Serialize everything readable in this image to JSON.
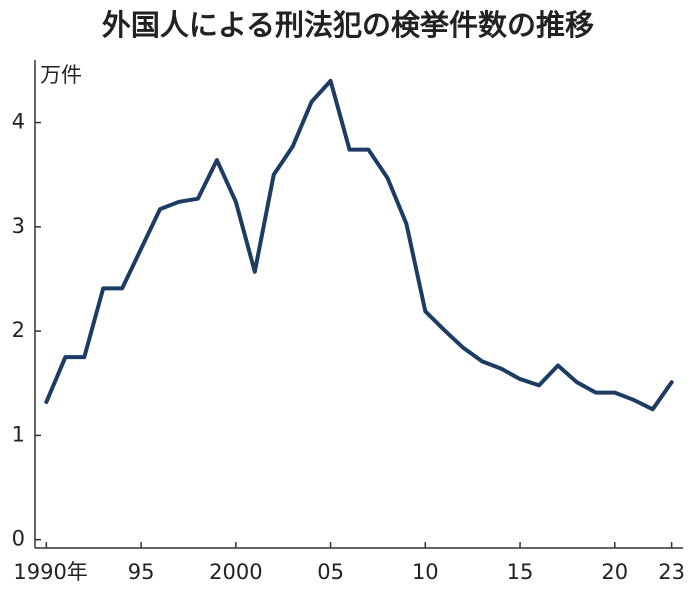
{
  "chart_data": {
    "type": "line",
    "title": "外国人による刑法犯の検挙件数の推移",
    "y_label": "万件",
    "x": [
      1990,
      1991,
      1992,
      1993,
      1994,
      1995,
      1996,
      1997,
      1998,
      1999,
      2000,
      2001,
      2002,
      2003,
      2004,
      2005,
      2006,
      2007,
      2008,
      2009,
      2010,
      2011,
      2012,
      2013,
      2014,
      2015,
      2016,
      2017,
      2018,
      2019,
      2020,
      2021,
      2022,
      2023
    ],
    "values": [
      1.32,
      1.75,
      1.75,
      2.41,
      2.41,
      2.79,
      3.17,
      3.24,
      3.27,
      3.64,
      3.24,
      2.57,
      3.5,
      3.77,
      4.2,
      4.4,
      3.74,
      3.74,
      3.47,
      3.03,
      2.19,
      2.01,
      1.84,
      1.71,
      1.64,
      1.54,
      1.48,
      1.67,
      1.51,
      1.41,
      1.41,
      1.34,
      1.25,
      1.51
    ],
    "color": "#1d3b63",
    "xlim": [
      1989.4,
      2023.6
    ],
    "xticks": [
      {
        "value": 1990,
        "label": "1990年"
      },
      {
        "value": 1995,
        "label": "95"
      },
      2000,
      {
        "value": 2005,
        "label": "05"
      },
      {
        "value": 2010,
        "label": "10"
      },
      {
        "value": 2015,
        "label": "15"
      },
      {
        "value": 2020,
        "label": "20"
      },
      {
        "value": 2023,
        "label": "23"
      }
    ],
    "ylim": [
      -0.08,
      4.6
    ],
    "yticks": [
      0,
      1,
      2,
      3,
      4
    ],
    "grid": false
  }
}
